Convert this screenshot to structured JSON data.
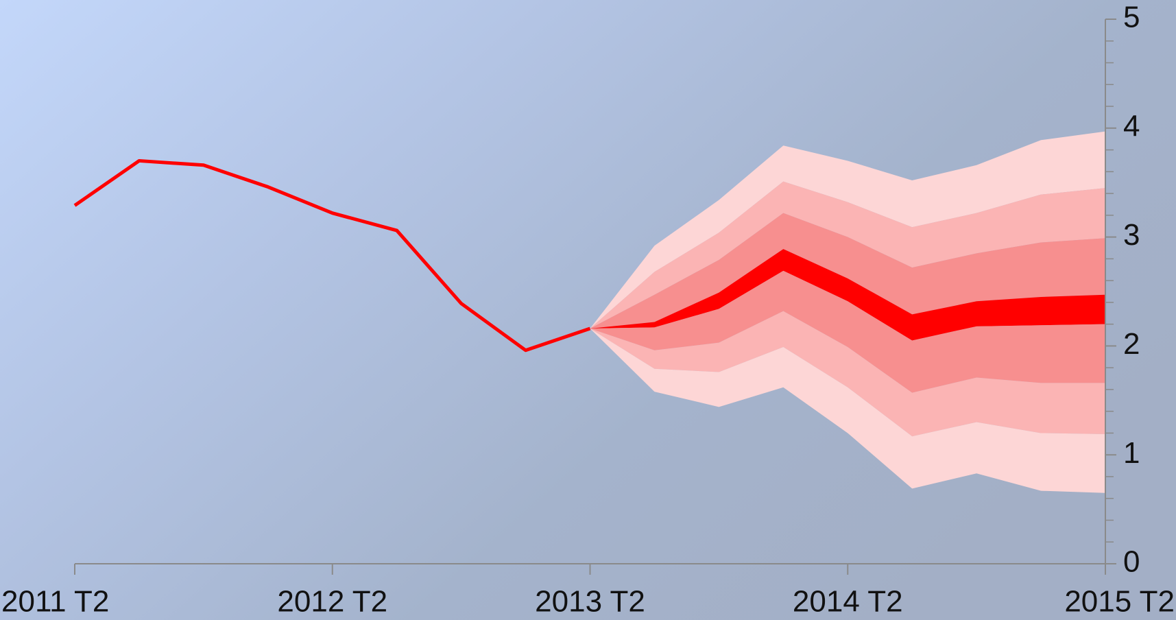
{
  "chart_data": {
    "type": "fan",
    "categories": [
      "2011 T2",
      null,
      null,
      null,
      "2012 T2",
      null,
      null,
      null,
      "2013 T2",
      null,
      null,
      null,
      "2014 T2",
      null,
      null,
      null,
      "2015 T2"
    ],
    "series": [
      {
        "color": "#ff0000",
        "values": [
          3.29,
          3.7,
          3.66,
          3.46,
          3.22,
          3.06,
          2.39,
          1.96,
          2.16,
          null,
          null,
          null,
          null,
          null,
          null,
          null,
          null
        ]
      }
    ],
    "fan": {
      "colors": [
        "#fdd6d6",
        "#fbb4b4",
        "#f78f8f",
        "#ff0000",
        "#f78f8f",
        "#fbb4b4",
        "#fdd6d6"
      ],
      "boundaries": [
        [
          null,
          null,
          null,
          null,
          null,
          null,
          null,
          null,
          2.16,
          2.92,
          3.34,
          3.84,
          3.7,
          3.52,
          3.66,
          3.89,
          3.97
        ],
        [
          null,
          null,
          null,
          null,
          null,
          null,
          null,
          null,
          2.16,
          2.68,
          3.04,
          3.51,
          3.32,
          3.09,
          3.22,
          3.39,
          3.45
        ],
        [
          null,
          null,
          null,
          null,
          null,
          null,
          null,
          null,
          2.16,
          2.47,
          2.79,
          3.22,
          3.0,
          2.72,
          2.85,
          2.95,
          2.99
        ],
        [
          null,
          null,
          null,
          null,
          null,
          null,
          null,
          null,
          2.16,
          2.22,
          2.49,
          2.89,
          2.62,
          2.29,
          2.41,
          2.45,
          2.47
        ],
        [
          null,
          null,
          null,
          null,
          null,
          null,
          null,
          null,
          2.16,
          2.17,
          2.34,
          2.69,
          2.41,
          2.05,
          2.18,
          2.19,
          2.2
        ],
        [
          null,
          null,
          null,
          null,
          null,
          null,
          null,
          null,
          2.16,
          1.96,
          2.03,
          2.32,
          1.99,
          1.57,
          1.71,
          1.66,
          1.66
        ],
        [
          null,
          null,
          null,
          null,
          null,
          null,
          null,
          null,
          2.16,
          1.79,
          1.76,
          1.99,
          1.62,
          1.17,
          1.3,
          1.2,
          1.19
        ],
        [
          null,
          null,
          null,
          null,
          null,
          null,
          null,
          null,
          2.16,
          1.58,
          1.44,
          1.62,
          1.2,
          0.69,
          0.83,
          0.67,
          0.65
        ]
      ]
    },
    "ylim": [
      0,
      5
    ],
    "yticks": [
      0,
      1,
      2,
      3,
      4,
      5
    ],
    "yminorticks": [
      0.2,
      0.4,
      0.6,
      0.8,
      1.2,
      1.4,
      1.6,
      1.8,
      2.2,
      2.4,
      2.6,
      2.8,
      3.2,
      3.4,
      3.6,
      3.8,
      4.2,
      4.4,
      4.6,
      4.8
    ],
    "yaxis_side": "right",
    "grid": false
  }
}
